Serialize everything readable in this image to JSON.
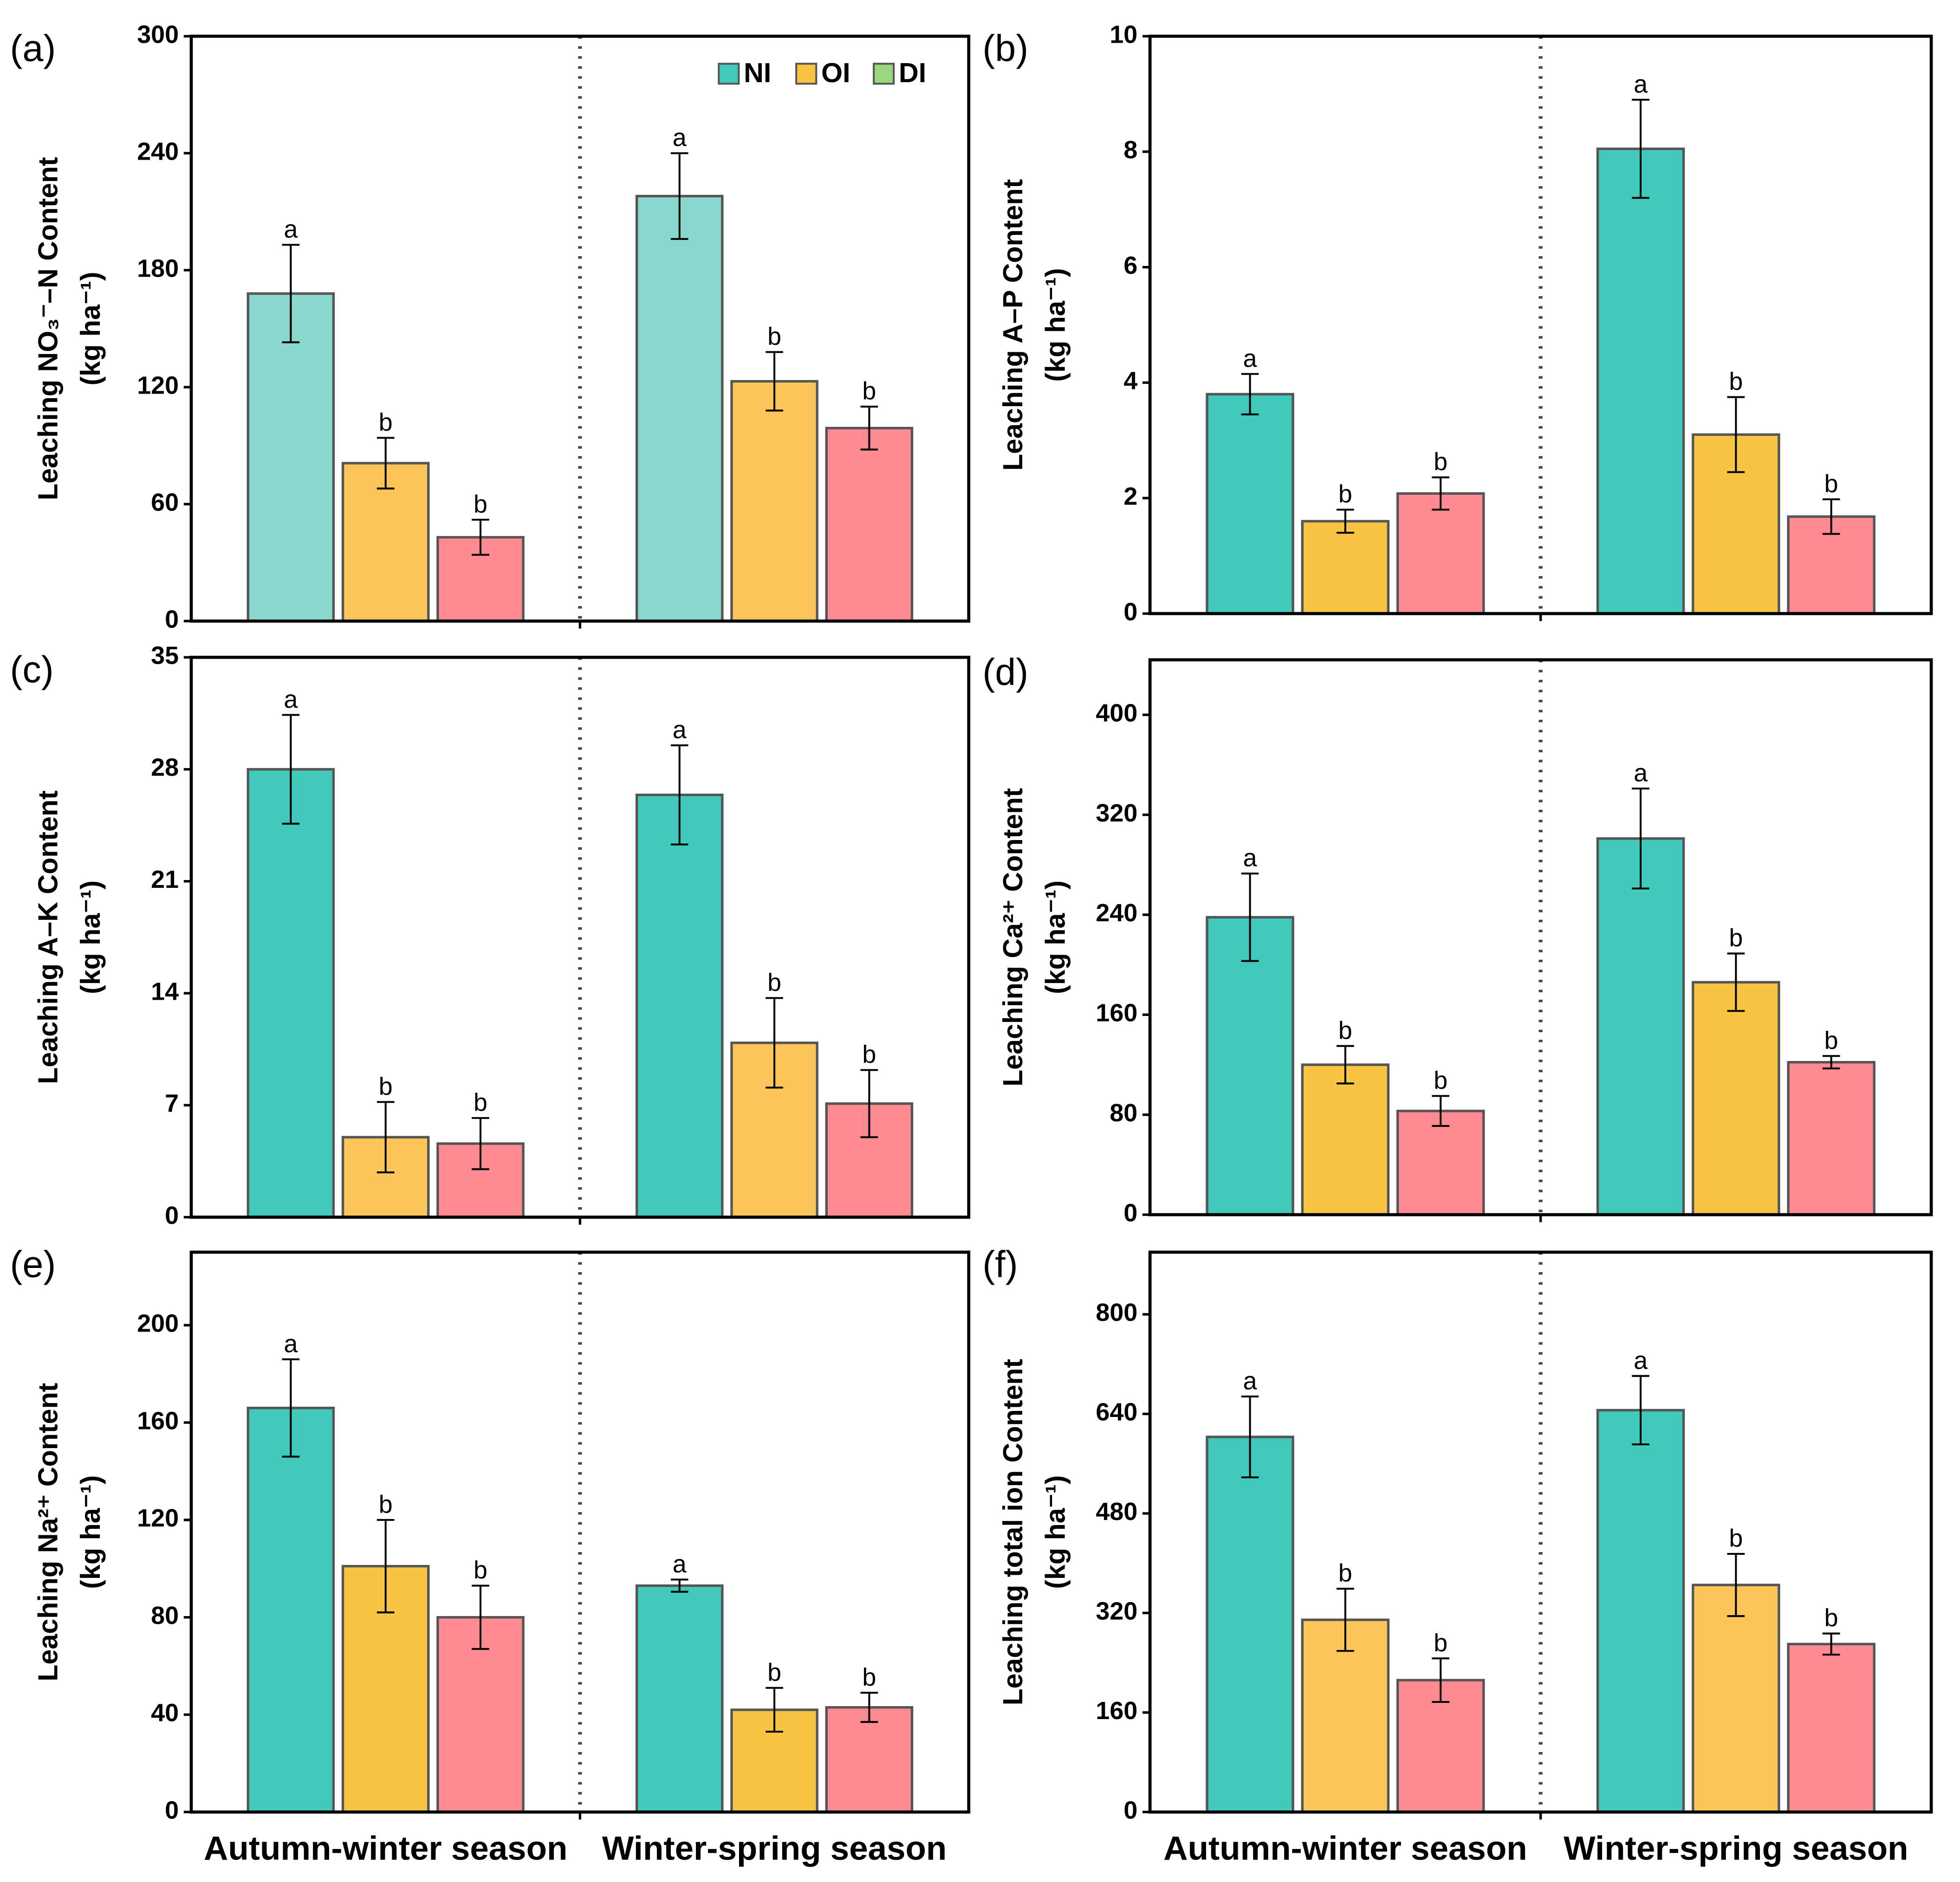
{
  "chart_data": [
    {
      "type": "bar",
      "panel": "(a)",
      "ylabel": "Leaching NO₃⁻–N Content",
      "ylabel2": "(kg ha⁻¹)",
      "ylim": [
        0,
        300
      ],
      "yticks": [
        0,
        60,
        120,
        180,
        240,
        300
      ],
      "legend_colors": [
        "#41c9bb",
        "#f8c443",
        "#9bd67f"
      ],
      "series": [
        {
          "name": "NI",
          "color": "#8ad8cd",
          "values": [
            168,
            218
          ],
          "errors": [
            25,
            22
          ],
          "letters": [
            "a",
            "a"
          ]
        },
        {
          "name": "OI",
          "color": "#fcc559",
          "values": [
            81,
            123
          ],
          "errors": [
            13,
            15
          ],
          "letters": [
            "b",
            "b"
          ]
        },
        {
          "name": "DI",
          "color": "#ff8a91",
          "values": [
            43,
            99
          ],
          "errors": [
            9,
            11
          ],
          "letters": [
            "b",
            "b"
          ]
        }
      ]
    },
    {
      "type": "bar",
      "panel": "(b)",
      "ylabel": "Leaching A–P Content",
      "ylabel2": "(kg ha⁻¹)",
      "ylim": [
        0,
        10
      ],
      "yticks": [
        0,
        2,
        4,
        6,
        8,
        10
      ],
      "series": [
        {
          "color": "#41c9bb",
          "values": [
            3.8,
            8.05
          ],
          "errors": [
            0.35,
            0.85
          ],
          "letters": [
            "a",
            "a"
          ]
        },
        {
          "color": "#f8c443",
          "values": [
            1.6,
            3.1
          ],
          "errors": [
            0.2,
            0.65
          ],
          "letters": [
            "b",
            "b"
          ]
        },
        {
          "color": "#ff8a91",
          "values": [
            2.08,
            1.68
          ],
          "errors": [
            0.28,
            0.3
          ],
          "letters": [
            "b",
            "b"
          ]
        }
      ]
    },
    {
      "type": "bar",
      "panel": "(c)",
      "ylabel": "Leaching A–K Content",
      "ylabel2": "(kg ha⁻¹)",
      "ylim": [
        0,
        35
      ],
      "yticks": [
        0,
        7,
        14,
        21,
        28,
        35
      ],
      "series": [
        {
          "color": "#41c9bb",
          "values": [
            28,
            26.4
          ],
          "errors": [
            3.4,
            3.1
          ],
          "letters": [
            "a",
            "a"
          ]
        },
        {
          "color": "#fcc559",
          "values": [
            5,
            10.9
          ],
          "errors": [
            2.2,
            2.8
          ],
          "letters": [
            "b",
            "b"
          ]
        },
        {
          "color": "#ff8a91",
          "values": [
            4.6,
            7.1
          ],
          "errors": [
            1.6,
            2.1
          ],
          "letters": [
            "b",
            "b"
          ]
        }
      ]
    },
    {
      "type": "bar",
      "panel": "(d)",
      "ylabel": "Leaching Ca²⁺ Content",
      "ylabel2": "(kg ha⁻¹)",
      "ylim": [
        0,
        444
      ],
      "yticks": [
        0,
        80,
        160,
        240,
        320,
        400
      ],
      "series": [
        {
          "color": "#41c9bb",
          "values": [
            238,
            301
          ],
          "errors": [
            35,
            40
          ],
          "letters": [
            "a",
            "a"
          ]
        },
        {
          "color": "#f8c443",
          "values": [
            120,
            186
          ],
          "errors": [
            15,
            23
          ],
          "letters": [
            "b",
            "b"
          ]
        },
        {
          "color": "#ff8a91",
          "values": [
            83,
            122
          ],
          "errors": [
            12,
            5
          ],
          "letters": [
            "b",
            "b"
          ]
        }
      ]
    },
    {
      "type": "bar",
      "panel": "(e)",
      "ylabel": "Leaching Na²⁺ Content",
      "ylabel2": "(kg ha⁻¹)",
      "ylim": [
        0,
        230
      ],
      "yticks": [
        0,
        40,
        80,
        120,
        160,
        200
      ],
      "categories": [
        "Autumn-winter season",
        "Winter-spring season"
      ],
      "series": [
        {
          "color": "#41c9bb",
          "values": [
            166,
            93
          ],
          "errors": [
            20,
            2.5
          ],
          "letters": [
            "a",
            "a"
          ]
        },
        {
          "color": "#f8c443",
          "values": [
            101,
            42
          ],
          "errors": [
            19,
            9
          ],
          "letters": [
            "b",
            "b"
          ]
        },
        {
          "color": "#ff8a91",
          "values": [
            80,
            43
          ],
          "errors": [
            13,
            6
          ],
          "letters": [
            "b",
            "b"
          ]
        }
      ]
    },
    {
      "type": "bar",
      "panel": "(f)",
      "ylabel": "Leaching total ion Content",
      "ylabel2": "(kg ha⁻¹)",
      "ylim": [
        0,
        900
      ],
      "yticks": [
        0,
        160,
        320,
        480,
        640,
        800
      ],
      "categories": [
        "Autumn-winter season",
        "Winter-spring season"
      ],
      "series": [
        {
          "color": "#41c9bb",
          "values": [
            603,
            646
          ],
          "errors": [
            65,
            55
          ],
          "letters": [
            "a",
            "a"
          ]
        },
        {
          "color": "#fcc559",
          "values": [
            309,
            365
          ],
          "errors": [
            50,
            50
          ],
          "letters": [
            "b",
            "b"
          ]
        },
        {
          "color": "#ff8a91",
          "values": [
            212,
            270
          ],
          "errors": [
            35,
            17
          ],
          "letters": [
            "b",
            "b"
          ]
        }
      ]
    }
  ]
}
